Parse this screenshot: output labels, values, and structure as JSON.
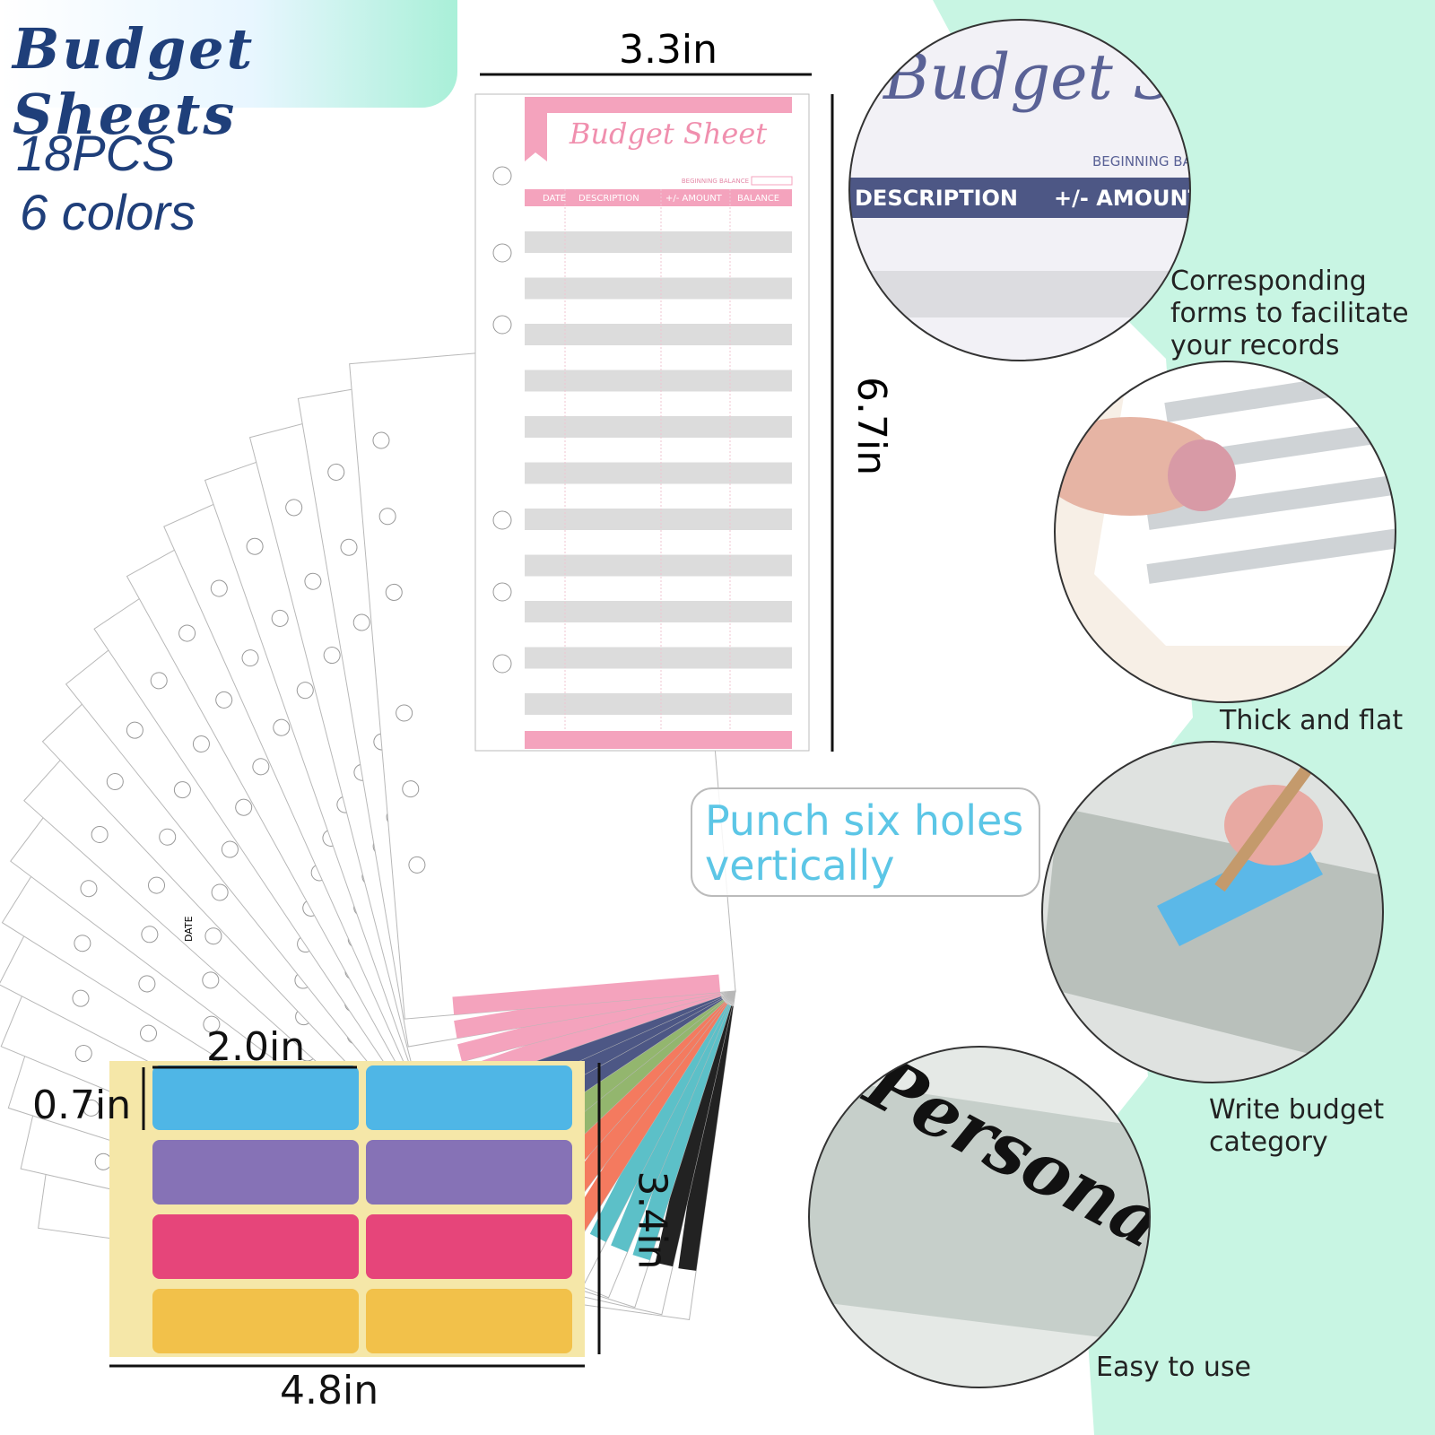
{
  "header": {
    "title": "Budget Sheets",
    "count": "18PCS",
    "colors": "6 colors"
  },
  "sheet": {
    "width_label": "3.3in",
    "height_label": "6.7in",
    "title": "Budget Sheet",
    "balance_label": "BEGINNING BALANCE",
    "columns": [
      "DATE",
      "DESCRIPTION",
      "+/- AMOUNT",
      "BALANCE"
    ],
    "back_column": "DATE"
  },
  "punch_note": "Punch six holes vertically",
  "stickers": {
    "width_label": "2.0in",
    "height_label": "0.7in",
    "sheet_height_label": "3.4in",
    "sheet_width_label": "4.8in"
  },
  "details": [
    {
      "caption": "Corresponding forms to facilitate your records",
      "zoom_title": "Budget Sh",
      "zoom_balance": "BEGINNING BA",
      "zoom_columns": [
        "DESCRIPTION",
        "+/- AMOUNT"
      ]
    },
    {
      "caption": "Thick and flat"
    },
    {
      "caption": "Write budget category"
    },
    {
      "caption": "Easy to use",
      "zoom_word": "Personal"
    }
  ]
}
